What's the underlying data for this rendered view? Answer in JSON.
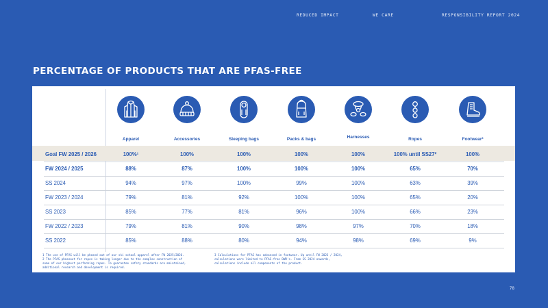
{
  "nav": {
    "item1": "REDUCED IMPACT",
    "item2": "WE CARE",
    "item3": "RESPONSIBILITY REPORT 2024"
  },
  "title": "PERCENTAGE OF PRODUCTS THAT ARE PFAS-FREE",
  "categories": [
    {
      "label": "Apparel",
      "icon": "jacket-icon"
    },
    {
      "label": "Accessories",
      "icon": "beanie-icon"
    },
    {
      "label": "Sleeping bags",
      "icon": "sleeping-bag-icon"
    },
    {
      "label": "Packs & bags",
      "icon": "backpack-icon"
    },
    {
      "label": "Harnesses",
      "icon": "harness-icon"
    },
    {
      "label": "Ropes",
      "icon": "rope-icon"
    },
    {
      "label": "Footwear³",
      "icon": "boot-icon"
    }
  ],
  "rows": [
    {
      "label": "Goal FW 2025 / 2026",
      "values": [
        "100%¹",
        "100%",
        "100%",
        "100%",
        "100%",
        "100% until SS27²",
        "100%"
      ]
    },
    {
      "label": "FW 2024 / 2025",
      "values": [
        "88%",
        "87%",
        "100%",
        "100%",
        "100%",
        "65%",
        "70%"
      ]
    },
    {
      "label": "SS 2024",
      "values": [
        "94%",
        "97%",
        "100%",
        "99%",
        "100%",
        "63%",
        "39%"
      ]
    },
    {
      "label": "FW 2023 / 2024",
      "values": [
        "79%",
        "81%",
        "92%",
        "100%",
        "100%",
        "65%",
        "20%"
      ]
    },
    {
      "label": "SS 2023",
      "values": [
        "85%",
        "77%",
        "81%",
        "96%",
        "100%",
        "66%",
        "23%"
      ]
    },
    {
      "label": "FW 2022 / 2023",
      "values": [
        "79%",
        "81%",
        "90%",
        "98%",
        "97%",
        "70%",
        "18%"
      ]
    },
    {
      "label": "SS 2022",
      "values": [
        "85%",
        "88%",
        "80%",
        "94%",
        "98%",
        "69%",
        "9%"
      ]
    }
  ],
  "footnotes": {
    "left": [
      "1  The use of PFAS will be phased out of our ski school apparel after FW 2025/2026.",
      "2  The PFAS phaseout for ropes is taking longer due to the complex construction of",
      "   some of our highest performing ropes. To guarantee safety standards are maintained,",
      "   additional research and development is required."
    ],
    "right": [
      "3 Calculations for PFAS has advanced in footwear. Up until FW 2023 / 2024,",
      "  calculations were limited to PFAS-free DWR's. From SS 2024 onwards,",
      "  calculations include all components of the product."
    ]
  },
  "page_number": "78",
  "colors": {
    "brand_blue": "#2a5bb3",
    "goal_row": "#ede9e1",
    "panel": "#ffffff"
  }
}
